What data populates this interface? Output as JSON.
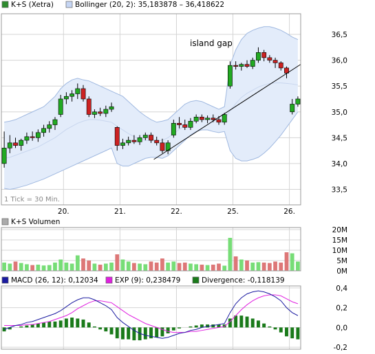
{
  "legends": {
    "price": [
      {
        "label": "K+S (Xetra)",
        "color": "#2e8b2e"
      },
      {
        "label": "Bollinger (20, 2): 35,183878 – 36,418622",
        "color": "#c6d6f4"
      }
    ],
    "volume": [
      {
        "label": "K+S Volumen",
        "color": "#aaaaaa"
      }
    ],
    "macd": [
      {
        "label": "MACD (26, 12): 0,12034",
        "color": "#1a1aa0"
      },
      {
        "label": "EXP (9): 0,238479",
        "color": "#e020e0"
      },
      {
        "label": "Divergence: -0,118139",
        "color": "#1a7a1a"
      }
    ]
  },
  "annotation": "island gap",
  "tick_note": "1 Tick = 30 Min.",
  "chart_data": [
    {
      "type": "candlestick",
      "name": "price",
      "ylim": [
        33.2,
        36.9
      ],
      "y_ticks": [
        33.5,
        34.0,
        34.5,
        35.0,
        35.5,
        36.0,
        36.5
      ],
      "y_tick_labels": [
        "33,5",
        "34,0",
        "34,5",
        "35,0",
        "35,5",
        "36,0",
        "36,5"
      ],
      "x_ticks": [
        "20.",
        "21.",
        "22.",
        "25.",
        "26."
      ],
      "x_tick_positions": [
        10.5,
        20.5,
        30.5,
        40.5,
        50.5
      ],
      "x_range": [
        -0.5,
        52.5
      ],
      "grid": true,
      "candles": [
        {
          "o": 34.0,
          "h": 34.62,
          "l": 33.92,
          "c": 34.3
        },
        {
          "o": 34.3,
          "h": 34.55,
          "l": 34.2,
          "c": 34.4
        },
        {
          "o": 34.4,
          "h": 34.5,
          "l": 34.3,
          "c": 34.35
        },
        {
          "o": 34.35,
          "h": 34.48,
          "l": 34.25,
          "c": 34.45
        },
        {
          "o": 34.45,
          "h": 34.6,
          "l": 34.38,
          "c": 34.52
        },
        {
          "o": 34.52,
          "h": 34.62,
          "l": 34.44,
          "c": 34.5
        },
        {
          "o": 34.5,
          "h": 34.66,
          "l": 34.42,
          "c": 34.6
        },
        {
          "o": 34.6,
          "h": 34.75,
          "l": 34.52,
          "c": 34.68
        },
        {
          "o": 34.68,
          "h": 34.82,
          "l": 34.6,
          "c": 34.75
        },
        {
          "o": 34.75,
          "h": 34.9,
          "l": 34.65,
          "c": 34.85
        },
        {
          "o": 34.95,
          "h": 35.33,
          "l": 34.9,
          "c": 35.25
        },
        {
          "o": 35.25,
          "h": 35.38,
          "l": 35.15,
          "c": 35.3
        },
        {
          "o": 35.3,
          "h": 35.42,
          "l": 35.2,
          "c": 35.35
        },
        {
          "o": 35.35,
          "h": 35.55,
          "l": 35.25,
          "c": 35.45
        },
        {
          "o": 35.45,
          "h": 35.52,
          "l": 35.2,
          "c": 35.25
        },
        {
          "o": 35.25,
          "h": 35.3,
          "l": 34.9,
          "c": 34.95
        },
        {
          "o": 34.95,
          "h": 35.05,
          "l": 34.88,
          "c": 35.0
        },
        {
          "o": 35.0,
          "h": 35.08,
          "l": 34.92,
          "c": 34.97
        },
        {
          "o": 34.97,
          "h": 35.12,
          "l": 34.9,
          "c": 35.05
        },
        {
          "o": 35.05,
          "h": 35.18,
          "l": 35.0,
          "c": 35.1
        },
        {
          "o": 34.7,
          "h": 34.72,
          "l": 34.25,
          "c": 34.35
        },
        {
          "o": 34.35,
          "h": 34.48,
          "l": 34.28,
          "c": 34.4
        },
        {
          "o": 34.4,
          "h": 34.52,
          "l": 34.35,
          "c": 34.45
        },
        {
          "o": 34.45,
          "h": 34.55,
          "l": 34.38,
          "c": 34.42
        },
        {
          "o": 34.42,
          "h": 34.55,
          "l": 34.36,
          "c": 34.5
        },
        {
          "o": 34.5,
          "h": 34.6,
          "l": 34.45,
          "c": 34.55
        },
        {
          "o": 34.55,
          "h": 34.6,
          "l": 34.4,
          "c": 34.45
        },
        {
          "o": 34.45,
          "h": 34.52,
          "l": 34.35,
          "c": 34.4
        },
        {
          "o": 34.4,
          "h": 34.48,
          "l": 34.2,
          "c": 34.25
        },
        {
          "o": 34.25,
          "h": 34.45,
          "l": 34.18,
          "c": 34.4
        },
        {
          "o": 34.55,
          "h": 34.85,
          "l": 34.5,
          "c": 34.78
        },
        {
          "o": 34.78,
          "h": 34.9,
          "l": 34.68,
          "c": 34.75
        },
        {
          "o": 34.75,
          "h": 34.85,
          "l": 34.65,
          "c": 34.7
        },
        {
          "o": 34.7,
          "h": 34.88,
          "l": 34.65,
          "c": 34.82
        },
        {
          "o": 34.82,
          "h": 34.95,
          "l": 34.78,
          "c": 34.9
        },
        {
          "o": 34.9,
          "h": 34.95,
          "l": 34.8,
          "c": 34.85
        },
        {
          "o": 34.85,
          "h": 34.93,
          "l": 34.78,
          "c": 34.88
        },
        {
          "o": 34.88,
          "h": 34.95,
          "l": 34.8,
          "c": 34.85
        },
        {
          "o": 34.85,
          "h": 34.92,
          "l": 34.75,
          "c": 34.8
        },
        {
          "o": 34.8,
          "h": 34.98,
          "l": 34.75,
          "c": 34.95
        },
        {
          "o": 35.5,
          "h": 35.98,
          "l": 35.45,
          "c": 35.9
        },
        {
          "o": 35.9,
          "h": 35.98,
          "l": 35.82,
          "c": 35.88
        },
        {
          "o": 35.88,
          "h": 35.95,
          "l": 35.8,
          "c": 35.92
        },
        {
          "o": 35.92,
          "h": 36.0,
          "l": 35.85,
          "c": 35.88
        },
        {
          "o": 35.88,
          "h": 36.05,
          "l": 35.83,
          "c": 36.0
        },
        {
          "o": 36.0,
          "h": 36.25,
          "l": 35.95,
          "c": 36.15
        },
        {
          "o": 36.15,
          "h": 36.2,
          "l": 35.98,
          "c": 36.05
        },
        {
          "o": 36.05,
          "h": 36.1,
          "l": 35.95,
          "c": 36.0
        },
        {
          "o": 36.0,
          "h": 36.05,
          "l": 35.85,
          "c": 35.95
        },
        {
          "o": 35.95,
          "h": 35.98,
          "l": 35.8,
          "c": 35.85
        },
        {
          "o": 35.85,
          "h": 35.88,
          "l": 35.65,
          "c": 35.75
        },
        {
          "o": 35.0,
          "h": 35.25,
          "l": 34.95,
          "c": 35.15
        },
        {
          "o": 35.15,
          "h": 35.3,
          "l": 35.1,
          "c": 35.25
        }
      ],
      "bollinger_upper": [
        34.8,
        34.82,
        34.85,
        34.9,
        34.95,
        35.0,
        35.05,
        35.1,
        35.2,
        35.3,
        35.45,
        35.55,
        35.62,
        35.65,
        35.62,
        35.6,
        35.55,
        35.5,
        35.45,
        35.4,
        35.35,
        35.3,
        35.2,
        35.1,
        35.0,
        34.92,
        34.85,
        34.8,
        34.82,
        34.85,
        34.95,
        35.05,
        35.15,
        35.2,
        35.22,
        35.2,
        35.15,
        35.1,
        35.05,
        35.1,
        35.9,
        36.2,
        36.4,
        36.52,
        36.58,
        36.62,
        36.65,
        36.65,
        36.62,
        36.58,
        36.52,
        36.45,
        36.4
      ],
      "bollinger_lower": [
        33.52,
        33.5,
        33.52,
        33.55,
        33.58,
        33.62,
        33.66,
        33.7,
        33.75,
        33.8,
        33.85,
        33.9,
        33.95,
        34.0,
        34.05,
        34.1,
        34.15,
        34.2,
        34.25,
        34.3,
        34.0,
        33.95,
        33.95,
        34.0,
        34.05,
        34.1,
        34.12,
        34.12,
        34.1,
        34.15,
        34.25,
        34.35,
        34.45,
        34.55,
        34.62,
        34.65,
        34.65,
        34.62,
        34.6,
        34.62,
        34.25,
        34.1,
        34.05,
        34.05,
        34.08,
        34.12,
        34.2,
        34.3,
        34.42,
        34.55,
        34.7,
        34.85,
        35.0
      ],
      "bollinger_mid": [
        34.1,
        34.12,
        34.16,
        34.2,
        34.24,
        34.28,
        34.32,
        34.38,
        34.44,
        34.5,
        34.58,
        34.66,
        34.72,
        34.78,
        34.82,
        34.85,
        34.85,
        34.84,
        34.82,
        34.8,
        34.72,
        34.65,
        34.58,
        34.52,
        34.48,
        34.45,
        34.44,
        34.44,
        34.45,
        34.5,
        34.58,
        34.66,
        34.74,
        34.8,
        34.84,
        34.86,
        34.86,
        34.85,
        34.84,
        34.86,
        35.02,
        35.16,
        35.28,
        35.36,
        35.42,
        35.48,
        35.52,
        35.55,
        35.56,
        35.56,
        35.55,
        35.54,
        35.52
      ],
      "trendline": [
        [
          26.5,
          34.08
        ],
        [
          52.5,
          35.92
        ]
      ]
    },
    {
      "type": "bar",
      "name": "volume",
      "ylim": [
        0,
        21000000
      ],
      "y_ticks": [
        0,
        5000000,
        10000000,
        15000000,
        20000000
      ],
      "y_tick_labels": [
        "0M",
        "5M",
        "10M",
        "15M",
        "20M"
      ],
      "grid": true,
      "values": [
        4.0,
        3.5,
        4.5,
        3.8,
        3.2,
        2.8,
        3.0,
        2.6,
        2.8,
        4.0,
        5.5,
        4.0,
        3.5,
        7.5,
        6.0,
        5.0,
        3.5,
        3.0,
        3.5,
        4.0,
        8.0,
        5.5,
        4.5,
        3.8,
        3.5,
        3.2,
        4.5,
        4.0,
        6.0,
        4.0,
        4.5,
        3.8,
        4.0,
        3.5,
        3.2,
        3.0,
        2.8,
        3.0,
        3.5,
        2.5,
        16.0,
        7.0,
        5.5,
        5.0,
        4.0,
        4.2,
        4.0,
        3.8,
        4.5,
        4.0,
        9.0,
        8.5,
        4.5
      ],
      "value_unit": "M"
    },
    {
      "type": "line+bar",
      "name": "macd",
      "ylim": [
        -0.22,
        0.42
      ],
      "y_ticks": [
        -0.2,
        0.0,
        0.2,
        0.4
      ],
      "y_tick_labels": [
        "-0,2",
        "0,0",
        "0,2",
        "0,4"
      ],
      "grid": true,
      "series": [
        {
          "values": [
            -0.02,
            0.0,
            0.02,
            0.03,
            0.05,
            0.06,
            0.08,
            0.1,
            0.12,
            0.14,
            0.17,
            0.21,
            0.25,
            0.28,
            0.3,
            0.3,
            0.28,
            0.25,
            0.22,
            0.18,
            0.1,
            0.05,
            0.01,
            -0.03,
            -0.06,
            -0.08,
            -0.09,
            -0.1,
            -0.11,
            -0.1,
            -0.08,
            -0.06,
            -0.05,
            -0.03,
            -0.02,
            0.0,
            0.01,
            0.02,
            0.03,
            0.04,
            0.15,
            0.24,
            0.3,
            0.34,
            0.36,
            0.37,
            0.36,
            0.34,
            0.31,
            0.27,
            0.2,
            0.15,
            0.12
          ]
        },
        {
          "values": [
            0.02,
            0.02,
            0.02,
            0.02,
            0.03,
            0.03,
            0.04,
            0.05,
            0.06,
            0.08,
            0.1,
            0.12,
            0.15,
            0.19,
            0.22,
            0.25,
            0.27,
            0.27,
            0.26,
            0.25,
            0.21,
            0.17,
            0.13,
            0.1,
            0.07,
            0.04,
            0.02,
            0.0,
            -0.02,
            -0.04,
            -0.05,
            -0.05,
            -0.05,
            -0.04,
            -0.04,
            -0.03,
            -0.02,
            -0.01,
            0.0,
            0.01,
            0.06,
            0.12,
            0.18,
            0.23,
            0.27,
            0.3,
            0.32,
            0.33,
            0.33,
            0.32,
            0.29,
            0.26,
            0.24
          ]
        },
        {
          "values": [
            -0.04,
            -0.02,
            0.0,
            0.01,
            0.02,
            0.03,
            0.04,
            0.05,
            0.06,
            0.06,
            0.07,
            0.09,
            0.1,
            0.09,
            0.08,
            0.05,
            0.01,
            -0.02,
            -0.04,
            -0.07,
            -0.11,
            -0.12,
            -0.12,
            -0.13,
            -0.13,
            -0.12,
            -0.11,
            -0.1,
            -0.09,
            -0.06,
            -0.03,
            -0.01,
            0.0,
            0.01,
            0.02,
            0.03,
            0.03,
            0.03,
            0.03,
            0.03,
            0.09,
            0.12,
            0.12,
            0.11,
            0.09,
            0.07,
            0.04,
            0.01,
            -0.02,
            -0.05,
            -0.09,
            -0.11,
            -0.12
          ]
        }
      ]
    }
  ]
}
